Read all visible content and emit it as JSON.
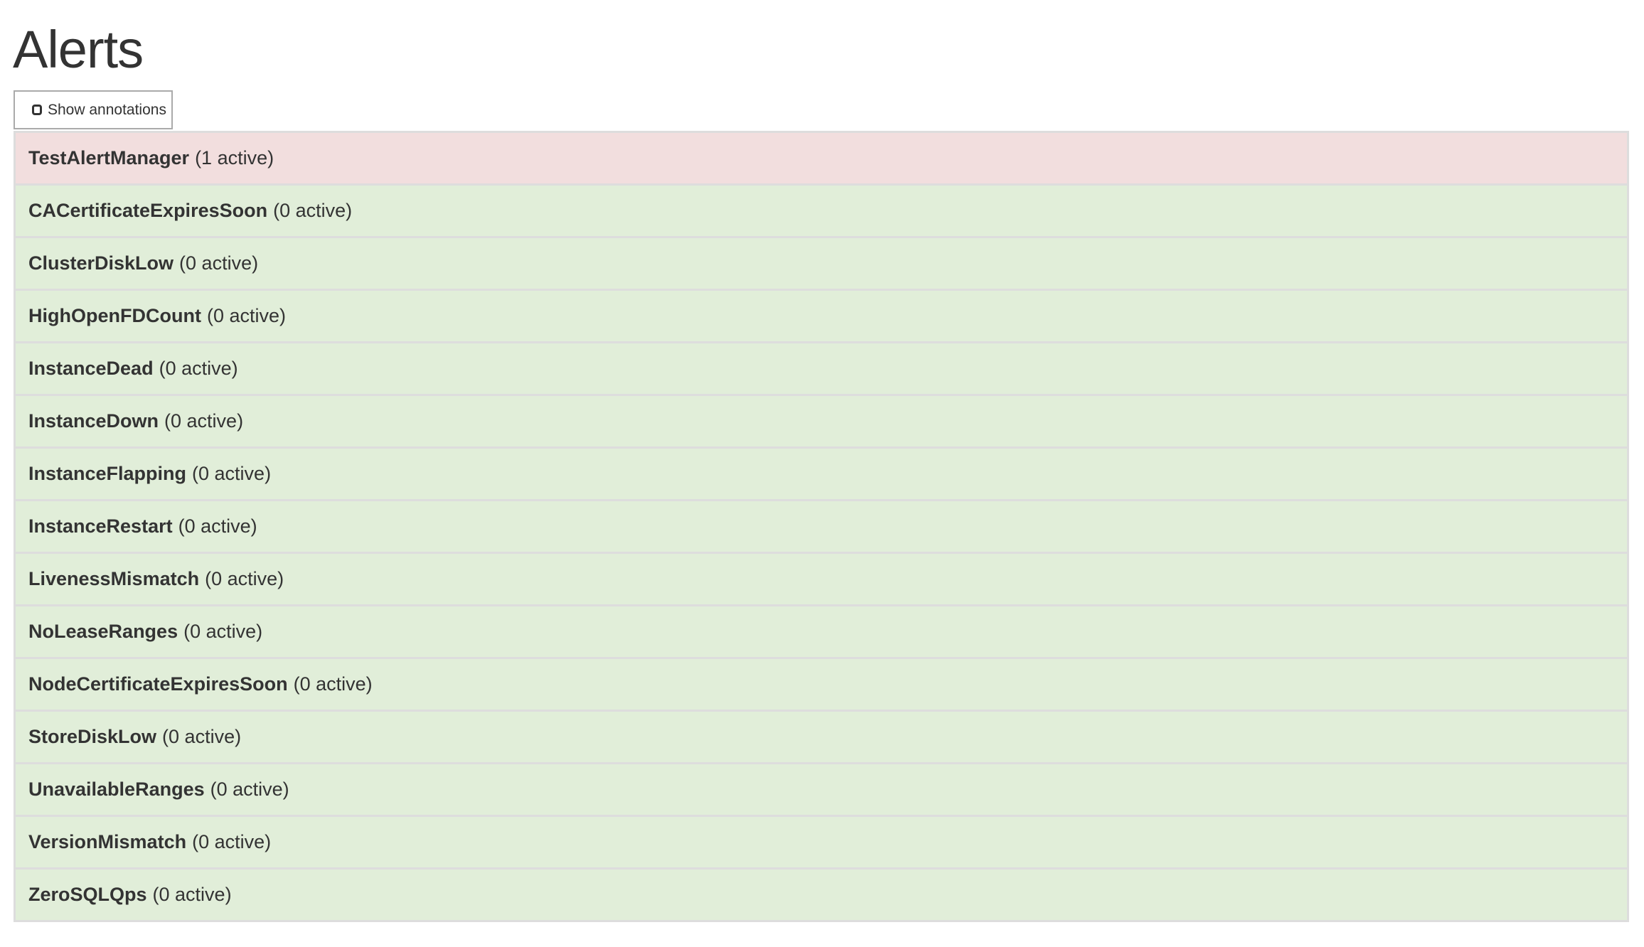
{
  "page": {
    "title": "Alerts"
  },
  "toolbar": {
    "show_annotations_label": "Show annotations",
    "show_annotations_checked": false
  },
  "colors": {
    "firing": "#f2dede",
    "inactive": "#e1eed9",
    "border": "#dddddd"
  },
  "alerts": [
    {
      "name": "TestAlertManager",
      "count": "(1 active)",
      "state": "firing"
    },
    {
      "name": "CACertificateExpiresSoon",
      "count": "(0 active)",
      "state": "inactive"
    },
    {
      "name": "ClusterDiskLow",
      "count": "(0 active)",
      "state": "inactive"
    },
    {
      "name": "HighOpenFDCount",
      "count": "(0 active)",
      "state": "inactive"
    },
    {
      "name": "InstanceDead",
      "count": "(0 active)",
      "state": "inactive"
    },
    {
      "name": "InstanceDown",
      "count": "(0 active)",
      "state": "inactive"
    },
    {
      "name": "InstanceFlapping",
      "count": "(0 active)",
      "state": "inactive"
    },
    {
      "name": "InstanceRestart",
      "count": "(0 active)",
      "state": "inactive"
    },
    {
      "name": "LivenessMismatch",
      "count": "(0 active)",
      "state": "inactive"
    },
    {
      "name": "NoLeaseRanges",
      "count": "(0 active)",
      "state": "inactive"
    },
    {
      "name": "NodeCertificateExpiresSoon",
      "count": "(0 active)",
      "state": "inactive"
    },
    {
      "name": "StoreDiskLow",
      "count": "(0 active)",
      "state": "inactive"
    },
    {
      "name": "UnavailableRanges",
      "count": "(0 active)",
      "state": "inactive"
    },
    {
      "name": "VersionMismatch",
      "count": "(0 active)",
      "state": "inactive"
    },
    {
      "name": "ZeroSQLQps",
      "count": "(0 active)",
      "state": "inactive"
    }
  ]
}
